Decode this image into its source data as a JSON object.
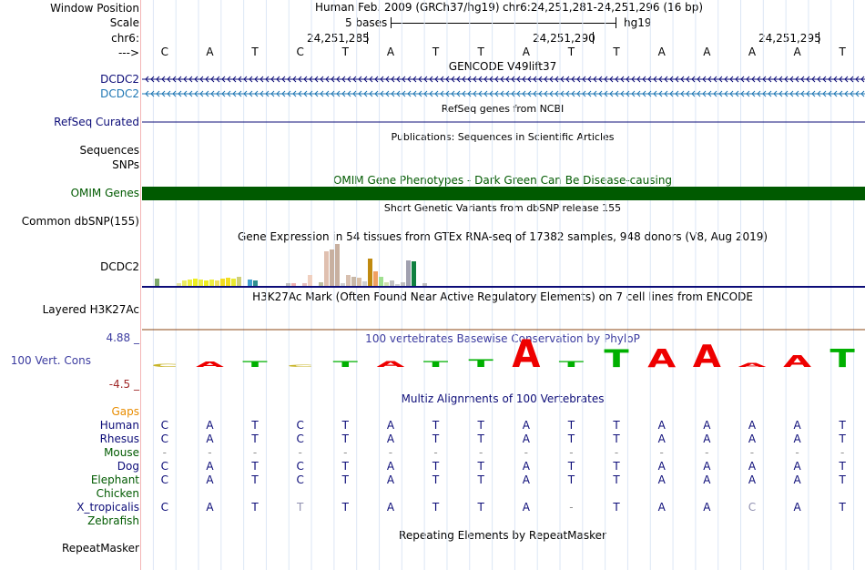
{
  "header": {
    "window_position_label": "Window Position",
    "scale_label": "Scale",
    "chrom_label": "chr6:",
    "strand_label": "--->",
    "assembly": "Human Feb. 2009 (GRCh37/hg19)",
    "position": "chr6:24,251,281-24,251,296 (16 bp)",
    "scale_text": "5 bases",
    "db": "hg19",
    "ticks": [
      "24,251,285",
      "24,251,290",
      "24,251,295"
    ]
  },
  "bases": [
    "C",
    "A",
    "T",
    "C",
    "T",
    "A",
    "T",
    "T",
    "A",
    "T",
    "T",
    "A",
    "A",
    "A",
    "A",
    "T"
  ],
  "tracks": {
    "gencode": {
      "title": "GENCODE V49lift37",
      "labels": [
        "DCDC2",
        "DCDC2"
      ]
    },
    "refseq": {
      "title": "RefSeq genes from NCBI",
      "label": "RefSeq Curated"
    },
    "pubs": {
      "title": "Publications: Sequences in Scientific Articles",
      "labels": [
        "Sequences",
        "SNPs"
      ]
    },
    "omim": {
      "title": "OMIM Gene Phenotypes - Dark Green Can Be Disease-causing",
      "label": "OMIM Genes"
    },
    "dbsnp": {
      "title": "Short Genetic Variants from dbSNP release 155",
      "label": "Common dbSNP(155)"
    },
    "gtex": {
      "title": "Gene Expression in 54 tissues from GTEx RNA-seq of 17382 samples, 948 donors (V8, Aug 2019)",
      "label": "DCDC2"
    },
    "h3k27ac": {
      "title": "H3K27Ac Mark (Often Found Near Active Regulatory Elements) on 7 cell lines from ENCODE",
      "label": "Layered H3K27Ac"
    },
    "phylop": {
      "title": "100 vertebrates Basewise Conservation by PhyloP",
      "label": "100 Vert. Cons",
      "max": "4.88 _",
      "min": "-4.5 _"
    },
    "multiz": {
      "title": "Multiz Alignments of 100 Vertebrates",
      "gaps_label": "Gaps"
    },
    "repeatmasker": {
      "title": "Repeating Elements by RepeatMasker",
      "label": "RepeatMasker"
    }
  },
  "species": [
    {
      "name": "Human",
      "bases": [
        "C",
        "A",
        "T",
        "C",
        "T",
        "A",
        "T",
        "T",
        "A",
        "T",
        "T",
        "A",
        "A",
        "A",
        "A",
        "T"
      ]
    },
    {
      "name": "Rhesus",
      "bases": [
        "C",
        "A",
        "T",
        "C",
        "T",
        "A",
        "T",
        "T",
        "A",
        "T",
        "T",
        "A",
        "A",
        "A",
        "A",
        "T"
      ]
    },
    {
      "name": "Mouse",
      "bases": [
        "-",
        "-",
        "-",
        "-",
        "-",
        "-",
        "-",
        "-",
        "-",
        "-",
        "-",
        "-",
        "-",
        "-",
        "-",
        "-"
      ]
    },
    {
      "name": "Dog",
      "bases": [
        "C",
        "A",
        "T",
        "C",
        "T",
        "A",
        "T",
        "T",
        "A",
        "T",
        "T",
        "A",
        "A",
        "A",
        "A",
        "T"
      ]
    },
    {
      "name": "Elephant",
      "bases": [
        "C",
        "A",
        "T",
        "C",
        "T",
        "A",
        "T",
        "T",
        "A",
        "T",
        "T",
        "A",
        "A",
        "A",
        "A",
        "T"
      ]
    },
    {
      "name": "Chicken",
      "bases": [
        "",
        "",
        "",
        "",
        "",
        "",
        "",
        "",
        "",
        "",
        "",
        "",
        "",
        "",
        "",
        ""
      ]
    },
    {
      "name": "X_tropicalis",
      "bases": [
        "C",
        "A",
        "T",
        "T",
        "T",
        "A",
        "T",
        "T",
        "A",
        "-",
        "T",
        "A",
        "A",
        "C",
        "A",
        "T"
      ]
    },
    {
      "name": "Zebrafish",
      "bases": [
        "",
        "",
        "",
        "",
        "",
        "",
        "",
        "",
        "",
        "",
        "",
        "",
        "",
        "",
        "",
        ""
      ]
    }
  ],
  "phylop_scores": [
    0.45,
    0.8,
    0.9,
    0.4,
    0.9,
    0.9,
    0.9,
    1.2,
    4.3,
    0.9,
    2.8,
    2.9,
    3.5,
    0.6,
    1.8,
    2.9
  ],
  "gtex_values": [
    8,
    0,
    0,
    0,
    3,
    6,
    7,
    8,
    7,
    6,
    7,
    6,
    8,
    9,
    8,
    10,
    0,
    7,
    6,
    0,
    0,
    0,
    0,
    0,
    3,
    3,
    0,
    3,
    12,
    0,
    4,
    38,
    40,
    46,
    3,
    12,
    10,
    9,
    5,
    30,
    16,
    10,
    4,
    6,
    2,
    4,
    28,
    27,
    0,
    3,
    0,
    0,
    0,
    0
  ],
  "gtex_colors": [
    "#7fa96c",
    "#d0d0d0",
    "#d0d0d0",
    "#d0d0d0",
    "#e6e6a0",
    "#eded60",
    "#eeee40",
    "#eeee20",
    "#eeee40",
    "#eeee20",
    "#eeee40",
    "#f0e060",
    "#f3dd20",
    "#f3dd20",
    "#eaea30",
    "#cfcf7a",
    "#d0d0d0",
    "#40a0d0",
    "#2f8f8f",
    "#d0d0d0",
    "#d0d0d0",
    "#d0d0d0",
    "#d0d0d0",
    "#d0d0d0",
    "#c0c0c0",
    "#f0b0b0",
    "#d0d0d0",
    "#e8c0c0",
    "#f0d0c0",
    "#d0d0d0",
    "#c0c0a0",
    "#e0c0b0",
    "#c8b0a0",
    "#c8b0a0",
    "#d0d0d0",
    "#d8c0b0",
    "#c8b8a8",
    "#d8c0a8",
    "#d0d0d0",
    "#c08a10",
    "#f0a060",
    "#a0e090",
    "#d0e0b0",
    "#c0c0c0",
    "#d0d0d0",
    "#c0c0c0",
    "#a0a0b0",
    "#108040",
    "#d0d0d0",
    "#c0c0c0",
    "#d0d0d0",
    "#d0d0d0",
    "#d0d0d0",
    "#d0d0d0"
  ],
  "colors": {
    "gene_navy": "#0c0c78",
    "gene_teal": "#1f77b4",
    "omim_green": "#005a00",
    "conservation_blue": "#3c3ca0",
    "gaps_orange": "#e88c00",
    "nt_A": "#ee0000",
    "nt_T": "#00b000",
    "nt_C": "#c8b428"
  }
}
